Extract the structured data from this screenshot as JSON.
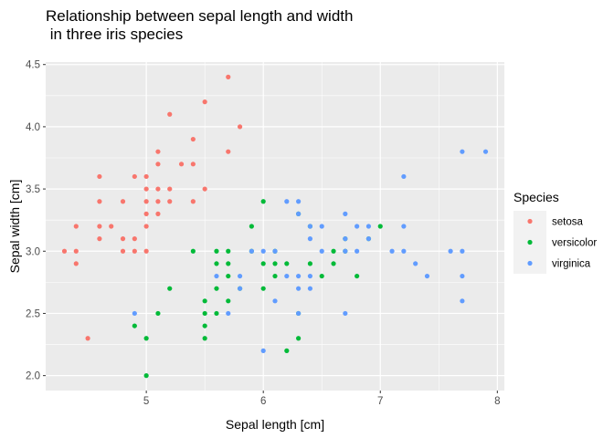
{
  "chart_data": {
    "type": "scatter",
    "title_lines": [
      "Relationship between sepal length and width",
      " in three iris species"
    ],
    "xlabel": "Sepal length [cm]",
    "ylabel": "Sepal width [cm]",
    "xlim": [
      4.14,
      8.06
    ],
    "ylim": [
      1.88,
      4.52
    ],
    "x_ticks": [
      5,
      6,
      7,
      8
    ],
    "y_ticks": [
      2.0,
      2.5,
      3.0,
      3.5,
      4.0,
      4.5
    ],
    "grid": true,
    "background": "#ebebeb",
    "legend": {
      "title": "Species",
      "position": "right"
    },
    "series": [
      {
        "name": "setosa",
        "color": "#f8766d",
        "points": [
          [
            4.3,
            3.0
          ],
          [
            4.4,
            2.9
          ],
          [
            4.4,
            3.0
          ],
          [
            4.4,
            3.2
          ],
          [
            4.5,
            2.3
          ],
          [
            4.6,
            3.1
          ],
          [
            4.6,
            3.2
          ],
          [
            4.6,
            3.4
          ],
          [
            4.6,
            3.6
          ],
          [
            4.7,
            3.2
          ],
          [
            4.8,
            3.0
          ],
          [
            4.8,
            3.1
          ],
          [
            4.8,
            3.4
          ],
          [
            4.9,
            3.0
          ],
          [
            4.9,
            3.1
          ],
          [
            4.9,
            3.6
          ],
          [
            5.0,
            3.0
          ],
          [
            5.0,
            3.2
          ],
          [
            5.0,
            3.3
          ],
          [
            5.0,
            3.4
          ],
          [
            5.0,
            3.5
          ],
          [
            5.0,
            3.6
          ],
          [
            5.1,
            3.3
          ],
          [
            5.1,
            3.4
          ],
          [
            5.1,
            3.5
          ],
          [
            5.1,
            3.7
          ],
          [
            5.1,
            3.8
          ],
          [
            5.2,
            3.4
          ],
          [
            5.2,
            3.5
          ],
          [
            5.2,
            4.1
          ],
          [
            5.3,
            3.7
          ],
          [
            5.4,
            3.4
          ],
          [
            5.4,
            3.7
          ],
          [
            5.4,
            3.9
          ],
          [
            5.5,
            3.5
          ],
          [
            5.5,
            4.2
          ],
          [
            5.7,
            3.8
          ],
          [
            5.7,
            4.4
          ],
          [
            5.8,
            4.0
          ]
        ]
      },
      {
        "name": "versicolor",
        "color": "#00ba38",
        "points": [
          [
            4.9,
            2.4
          ],
          [
            5.0,
            2.0
          ],
          [
            5.0,
            2.3
          ],
          [
            5.1,
            2.5
          ],
          [
            5.2,
            2.7
          ],
          [
            5.4,
            3.0
          ],
          [
            5.5,
            2.3
          ],
          [
            5.5,
            2.4
          ],
          [
            5.5,
            2.5
          ],
          [
            5.5,
            2.6
          ],
          [
            5.6,
            2.5
          ],
          [
            5.6,
            2.7
          ],
          [
            5.6,
            2.9
          ],
          [
            5.6,
            3.0
          ],
          [
            5.7,
            2.6
          ],
          [
            5.7,
            2.8
          ],
          [
            5.7,
            2.9
          ],
          [
            5.7,
            3.0
          ],
          [
            5.8,
            2.7
          ],
          [
            5.9,
            3.0
          ],
          [
            5.9,
            3.2
          ],
          [
            6.0,
            2.7
          ],
          [
            6.0,
            2.9
          ],
          [
            6.0,
            3.4
          ],
          [
            6.1,
            2.8
          ],
          [
            6.1,
            2.9
          ],
          [
            6.1,
            3.0
          ],
          [
            6.2,
            2.2
          ],
          [
            6.2,
            2.9
          ],
          [
            6.3,
            2.3
          ],
          [
            6.3,
            2.5
          ],
          [
            6.3,
            3.3
          ],
          [
            6.4,
            2.9
          ],
          [
            6.4,
            3.2
          ],
          [
            6.5,
            2.8
          ],
          [
            6.6,
            2.9
          ],
          [
            6.6,
            3.0
          ],
          [
            6.7,
            3.0
          ],
          [
            6.7,
            3.1
          ],
          [
            6.8,
            2.8
          ],
          [
            6.9,
            3.1
          ],
          [
            7.0,
            3.2
          ]
        ]
      },
      {
        "name": "virginica",
        "color": "#619cff",
        "points": [
          [
            4.9,
            2.5
          ],
          [
            5.6,
            2.8
          ],
          [
            5.7,
            2.5
          ],
          [
            5.8,
            2.7
          ],
          [
            5.8,
            2.8
          ],
          [
            5.9,
            3.0
          ],
          [
            6.0,
            2.2
          ],
          [
            6.0,
            3.0
          ],
          [
            6.1,
            2.6
          ],
          [
            6.1,
            3.0
          ],
          [
            6.2,
            2.8
          ],
          [
            6.2,
            3.4
          ],
          [
            6.3,
            2.5
          ],
          [
            6.3,
            2.7
          ],
          [
            6.3,
            2.8
          ],
          [
            6.3,
            3.3
          ],
          [
            6.3,
            3.4
          ],
          [
            6.4,
            2.7
          ],
          [
            6.4,
            2.8
          ],
          [
            6.4,
            3.1
          ],
          [
            6.4,
            3.2
          ],
          [
            6.5,
            3.0
          ],
          [
            6.5,
            3.2
          ],
          [
            6.7,
            2.5
          ],
          [
            6.7,
            3.0
          ],
          [
            6.7,
            3.1
          ],
          [
            6.7,
            3.3
          ],
          [
            6.8,
            3.0
          ],
          [
            6.8,
            3.2
          ],
          [
            6.9,
            3.1
          ],
          [
            6.9,
            3.2
          ],
          [
            7.1,
            3.0
          ],
          [
            7.2,
            3.0
          ],
          [
            7.2,
            3.2
          ],
          [
            7.2,
            3.6
          ],
          [
            7.3,
            2.9
          ],
          [
            7.4,
            2.8
          ],
          [
            7.6,
            3.0
          ],
          [
            7.7,
            2.6
          ],
          [
            7.7,
            2.8
          ],
          [
            7.7,
            3.0
          ],
          [
            7.7,
            3.8
          ],
          [
            7.9,
            3.8
          ]
        ]
      }
    ]
  }
}
